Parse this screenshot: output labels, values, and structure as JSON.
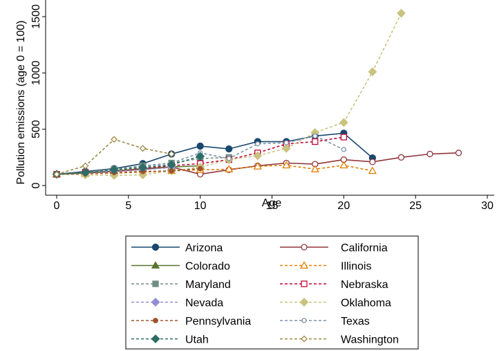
{
  "chart_data": {
    "type": "line",
    "xlabel": "Age",
    "ylabel": "Pollution emissions (age 0 = 100)",
    "xlim": [
      -1,
      30.5
    ],
    "ylim": [
      -50,
      1560
    ],
    "xticks": [
      0,
      5,
      10,
      15,
      20,
      25,
      30
    ],
    "yticks": [
      0,
      500,
      1000,
      1500
    ],
    "grid": false,
    "legend": "bottom",
    "series": [
      {
        "name": "Arizona",
        "color": "#1a476f",
        "dash": "solid",
        "marker": "circle",
        "fill": true,
        "points": [
          [
            0,
            100
          ],
          [
            2,
            125
          ],
          [
            4,
            150
          ],
          [
            6,
            195
          ],
          [
            8,
            280
          ],
          [
            10,
            350
          ],
          [
            12,
            325
          ],
          [
            14,
            390
          ],
          [
            16,
            390
          ],
          [
            18,
            440
          ],
          [
            20,
            465
          ],
          [
            22,
            245
          ]
        ]
      },
      {
        "name": "California",
        "color": "#90353b",
        "dash": "solid",
        "marker": "circle",
        "fill": false,
        "points": [
          [
            0,
            100
          ],
          [
            2,
            110
          ],
          [
            4,
            125
          ],
          [
            6,
            145
          ],
          [
            8,
            165
          ],
          [
            10,
            100
          ],
          [
            12,
            140
          ],
          [
            14,
            175
          ],
          [
            16,
            200
          ],
          [
            18,
            190
          ],
          [
            20,
            230
          ],
          [
            22,
            210
          ],
          [
            24,
            250
          ],
          [
            26,
            280
          ],
          [
            28,
            290
          ]
        ]
      },
      {
        "name": "Colorado",
        "color": "#55752f",
        "dash": "solid",
        "marker": "triangle",
        "fill": true,
        "points": [
          [
            0,
            100
          ],
          [
            2,
            115
          ],
          [
            4,
            130
          ],
          [
            6,
            150
          ],
          [
            8,
            165
          ],
          [
            10,
            175
          ]
        ]
      },
      {
        "name": "Illinois",
        "color": "#e37e00",
        "dash": "dashed",
        "marker": "triangle",
        "fill": false,
        "points": [
          [
            0,
            100
          ],
          [
            2,
            105
          ],
          [
            4,
            110
          ],
          [
            6,
            120
          ],
          [
            8,
            130
          ],
          [
            10,
            140
          ],
          [
            12,
            145
          ],
          [
            14,
            170
          ],
          [
            16,
            180
          ],
          [
            18,
            145
          ],
          [
            20,
            180
          ],
          [
            22,
            130
          ]
        ]
      },
      {
        "name": "Maryland",
        "color": "#6e8e84",
        "dash": "dashed",
        "marker": "square",
        "fill": true,
        "points": [
          [
            0,
            100
          ],
          [
            2,
            120
          ],
          [
            4,
            145
          ],
          [
            6,
            175
          ],
          [
            8,
            200
          ],
          [
            10,
            240
          ],
          [
            12,
            250
          ]
        ]
      },
      {
        "name": "Nebraska",
        "color": "#c10534",
        "dash": "dashed",
        "marker": "square",
        "fill": false,
        "points": [
          [
            0,
            100
          ],
          [
            2,
            115
          ],
          [
            4,
            125
          ],
          [
            6,
            150
          ],
          [
            8,
            175
          ],
          [
            10,
            195
          ],
          [
            12,
            230
          ],
          [
            14,
            290
          ],
          [
            16,
            370
          ],
          [
            18,
            390
          ],
          [
            20,
            430
          ]
        ]
      },
      {
        "name": "Nevada",
        "color": "#938dd2",
        "dash": "dashed",
        "marker": "diamond",
        "fill": true,
        "points": [
          [
            0,
            100
          ],
          [
            2,
            110
          ],
          [
            4,
            125
          ],
          [
            6,
            140
          ],
          [
            8,
            160
          ]
        ]
      },
      {
        "name": "Oklahoma",
        "color": "#cac27e",
        "dash": "dashed",
        "marker": "diamond",
        "fill": true,
        "points": [
          [
            0,
            100
          ],
          [
            2,
            95
          ],
          [
            4,
            90
          ],
          [
            6,
            95
          ],
          [
            8,
            130
          ],
          [
            10,
            165
          ],
          [
            12,
            230
          ],
          [
            14,
            265
          ],
          [
            16,
            330
          ],
          [
            18,
            470
          ],
          [
            20,
            560
          ],
          [
            22,
            1010
          ],
          [
            24,
            1530
          ]
        ]
      },
      {
        "name": "Pennsylvania",
        "color": "#a0522d",
        "dash": "dashed",
        "marker": "circle",
        "fill": true,
        "points": [
          [
            0,
            100
          ],
          [
            2,
            105
          ],
          [
            4,
            115
          ],
          [
            6,
            125
          ],
          [
            8,
            130
          ],
          [
            10,
            150
          ]
        ]
      },
      {
        "name": "Texas",
        "color": "#7b92a8",
        "dash": "dashed",
        "marker": "circle",
        "fill": false,
        "points": [
          [
            0,
            100
          ],
          [
            2,
            110
          ],
          [
            4,
            140
          ],
          [
            6,
            170
          ],
          [
            8,
            200
          ],
          [
            10,
            290
          ],
          [
            12,
            240
          ],
          [
            14,
            370
          ],
          [
            16,
            380
          ],
          [
            18,
            440
          ],
          [
            20,
            320
          ]
        ]
      },
      {
        "name": "Utah",
        "color": "#2d6d66",
        "dash": "dashed",
        "marker": "diamond",
        "fill": true,
        "points": [
          [
            0,
            100
          ],
          [
            2,
            115
          ],
          [
            4,
            140
          ],
          [
            6,
            160
          ],
          [
            8,
            185
          ],
          [
            10,
            260
          ]
        ]
      },
      {
        "name": "Washington",
        "color": "#9c8847",
        "dash": "dashed",
        "marker": "diamond",
        "fill": false,
        "points": [
          [
            0,
            100
          ],
          [
            2,
            175
          ],
          [
            4,
            410
          ],
          [
            6,
            330
          ],
          [
            8,
            280
          ]
        ]
      }
    ]
  }
}
